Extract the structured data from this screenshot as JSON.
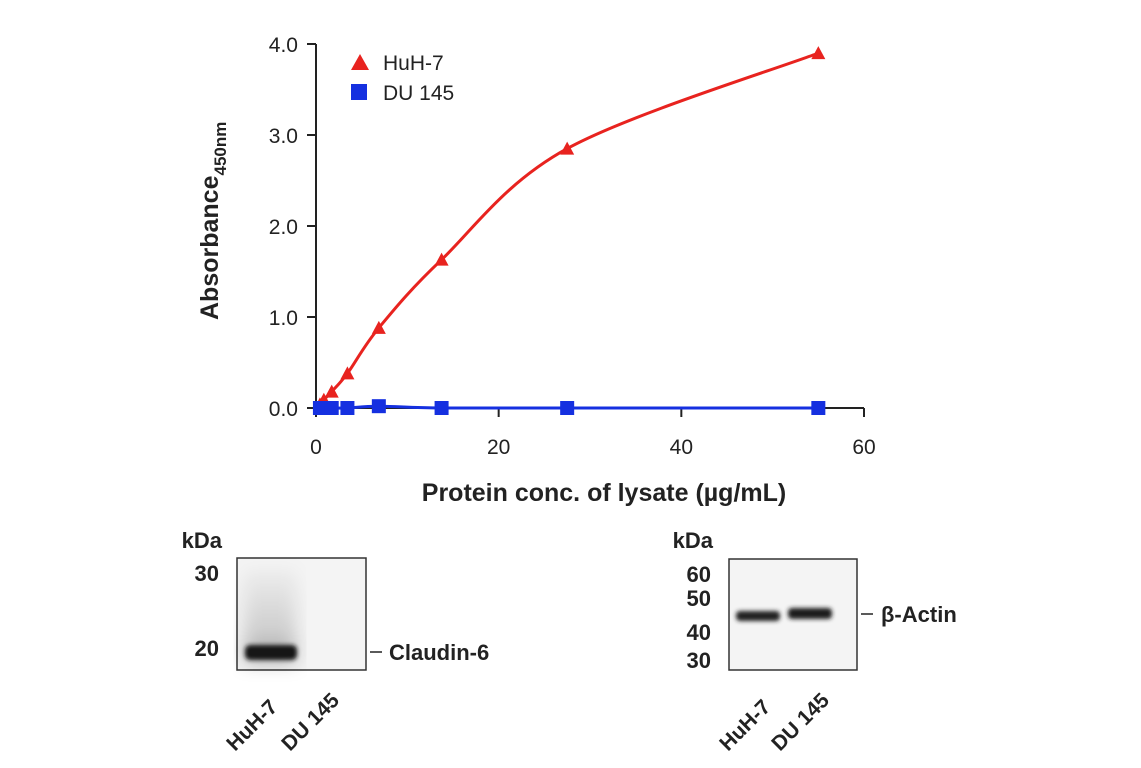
{
  "chart_data": {
    "type": "line",
    "title": "",
    "xlabel": "Protein conc. of lysate (µg/mL)",
    "ylabel_main": "Absorbance",
    "ylabel_sub": "450nm",
    "xlim": [
      0,
      60
    ],
    "ylim": [
      0,
      4.0
    ],
    "x_ticks": [
      0,
      20,
      40,
      60
    ],
    "x_tick_labels": [
      "0",
      "20",
      "40",
      "60"
    ],
    "y_ticks": [
      0,
      1,
      2,
      3,
      4
    ],
    "y_tick_labels": [
      "0.0",
      "1.0",
      "2.0",
      "3.0",
      "4.0"
    ],
    "grid": false,
    "legend_position": "top-left",
    "series": [
      {
        "name": "HuH-7",
        "marker": "triangle",
        "color": "#e8231f",
        "x": [
          0.43,
          0.86,
          1.72,
          3.44,
          6.88,
          13.75,
          27.5,
          55
        ],
        "y": [
          0.04,
          0.09,
          0.18,
          0.38,
          0.88,
          1.63,
          2.85,
          3.9
        ]
      },
      {
        "name": "DU 145",
        "marker": "square",
        "color": "#1530e0",
        "x": [
          0.43,
          0.86,
          1.72,
          3.44,
          6.88,
          13.75,
          27.5,
          55
        ],
        "y": [
          0.0,
          0.0,
          0.0,
          0.0,
          0.02,
          0.0,
          0.0,
          0.0
        ]
      }
    ]
  },
  "blots": {
    "left": {
      "kda_label": "kDa",
      "markers": [
        "30",
        "20"
      ],
      "band_label": "Claudin-6",
      "lanes": [
        "HuH-7",
        "DU 145"
      ]
    },
    "right": {
      "kda_label": "kDa",
      "markers": [
        "60",
        "50",
        "40",
        "30"
      ],
      "band_label": "β-Actin",
      "lanes": [
        "HuH-7",
        "DU 145"
      ]
    }
  }
}
